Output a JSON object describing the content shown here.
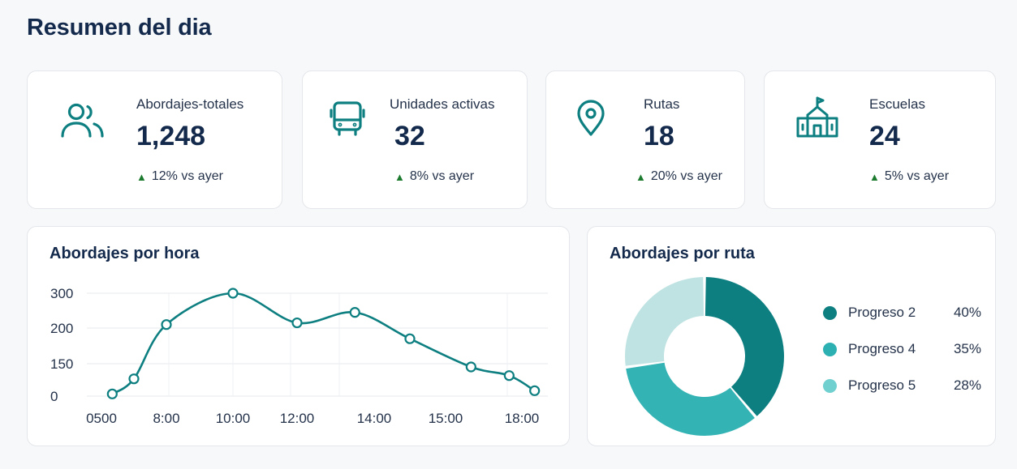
{
  "page": {
    "title": "Resumen del dia"
  },
  "stats": [
    {
      "label": "Abordajes-totales",
      "value": "1,248",
      "trend": "12% vs ayer",
      "icon": "users-icon"
    },
    {
      "label": "Unidades activas",
      "value": "32",
      "trend": "8% vs ayer",
      "icon": "bus-icon"
    },
    {
      "label": "Rutas",
      "value": "18",
      "trend": "20% vs ayer",
      "icon": "map-pin-icon"
    },
    {
      "label": "Escuelas",
      "value": "24",
      "trend": "5% vs ayer",
      "icon": "school-icon"
    }
  ],
  "colors": {
    "teal_dark": "#0e7f81",
    "teal_mid": "#34b3b4",
    "teal_light": "#bfe3e2",
    "trend_up": "#1b7a2e",
    "navy": "#142a4c"
  },
  "hourly": {
    "title": "Abordajes por hora",
    "chart_data": {
      "type": "line",
      "title": "Abordajes por hora",
      "yticks": [
        "300",
        "200",
        "150",
        "0"
      ],
      "xticks": [
        "0500",
        "8:00",
        "10:00",
        "12:00",
        "14:00",
        "15:00",
        "18:00"
      ],
      "points": [
        {
          "x": "5:30",
          "y": 10
        },
        {
          "x": "6:30",
          "y": 80
        },
        {
          "x": "8:00",
          "y": 210
        },
        {
          "x": "10:00",
          "y": 300
        },
        {
          "x": "12:00",
          "y": 215
        },
        {
          "x": "13:30",
          "y": 245
        },
        {
          "x": "14:30",
          "y": 185
        },
        {
          "x": "16:00",
          "y": 135
        },
        {
          "x": "17:30",
          "y": 95
        },
        {
          "x": "18:30",
          "y": 25
        }
      ]
    }
  },
  "by_route": {
    "title": "Abordajes por ruta",
    "chart_data": {
      "type": "pie",
      "title": "Abordajes por ruta",
      "slices": [
        {
          "name": "Progreso 2",
          "label": "40%",
          "value": 40,
          "color": "#0e7f81"
        },
        {
          "name": "Progreso 4",
          "label": "35%",
          "value": 35,
          "color": "#34b3b4"
        },
        {
          "name": "Progreso 5",
          "label": "28%",
          "value": 28,
          "color": "#bfe3e2"
        }
      ],
      "legend_colors": [
        "#0e7f81",
        "#2db0b1",
        "#6fd0cf"
      ]
    }
  }
}
